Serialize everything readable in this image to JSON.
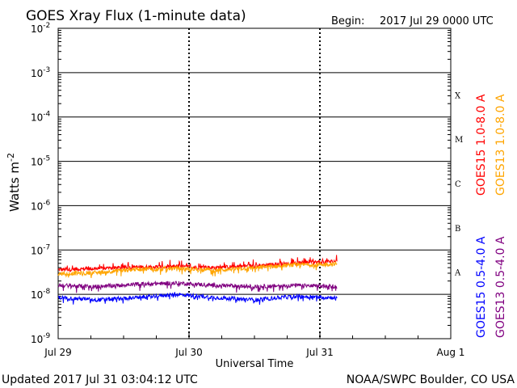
{
  "chart_data": {
    "type": "line",
    "title": "GOES Xray Flux (1-minute data)",
    "begin_label": "Begin:",
    "begin_value": "2017 Jul 29 0000 UTC",
    "xlabel": "Universal Time",
    "ylabel_main": "Watts m",
    "ylabel_exp": "-2",
    "x_ticks": [
      "Jul 29",
      "Jul 30",
      "Jul 31",
      "Aug 1"
    ],
    "xlim_days": [
      0,
      3
    ],
    "ylim_exponent": [
      -9,
      -2
    ],
    "y_ticks": [
      {
        "base": "10",
        "exp": "-2"
      },
      {
        "base": "10",
        "exp": "-3"
      },
      {
        "base": "10",
        "exp": "-4"
      },
      {
        "base": "10",
        "exp": "-5"
      },
      {
        "base": "10",
        "exp": "-6"
      },
      {
        "base": "10",
        "exp": "-7"
      },
      {
        "base": "10",
        "exp": "-8"
      },
      {
        "base": "10",
        "exp": "-9"
      }
    ],
    "flare_classes": [
      {
        "label": "X",
        "exp": -3.5
      },
      {
        "label": "M",
        "exp": -4.5
      },
      {
        "label": "C",
        "exp": -5.5
      },
      {
        "label": "B",
        "exp": -6.5
      },
      {
        "label": "A",
        "exp": -7.5
      }
    ],
    "series": [
      {
        "name": "GOES15 1.0-8.0 A",
        "color": "#ff0000",
        "x": [
          0,
          0.3,
          0.6,
          0.9,
          1.2,
          1.5,
          1.8,
          2.1,
          2.13
        ],
        "y": [
          3.6e-08,
          3.8e-08,
          4.1e-08,
          4.2e-08,
          4e-08,
          4.4e-08,
          5e-08,
          5.5e-08,
          5.7e-08
        ]
      },
      {
        "name": "GOES13 1.0-8.0 A",
        "color": "#ffa500",
        "x": [
          0,
          0.3,
          0.6,
          0.9,
          1.2,
          1.5,
          1.8,
          2.1,
          2.13
        ],
        "y": [
          2.9e-08,
          3.1e-08,
          3.7e-08,
          3.9e-08,
          3.5e-08,
          4e-08,
          4.6e-08,
          4.8e-08,
          4.9e-08
        ]
      },
      {
        "name": "GOES15 0.5-4.0 A",
        "color": "#0000ff",
        "x": [
          0,
          0.3,
          0.6,
          0.9,
          1.2,
          1.5,
          1.8,
          2.1,
          2.13
        ],
        "y": [
          8.5e-09,
          7.5e-09,
          8.5e-09,
          1e-08,
          8.5e-09,
          7.5e-09,
          9e-09,
          8.5e-09,
          8e-09
        ]
      },
      {
        "name": "GOES13 0.5-4.0 A",
        "color": "#800080",
        "x": [
          0,
          0.3,
          0.6,
          0.9,
          1.2,
          1.5,
          1.8,
          2.1,
          2.13
        ],
        "y": [
          1.6e-08,
          1.5e-08,
          1.7e-08,
          1.8e-08,
          1.6e-08,
          1.5e-08,
          1.6e-08,
          1.5e-08,
          1.5e-08
        ]
      }
    ],
    "legend": [
      "GOES15 1.0-8.0 A",
      "GOES13 1.0-8.0 A",
      "GOES15 0.5-4.0 A",
      "GOES13 0.5-4.0 A"
    ]
  },
  "footer": {
    "updated": "Updated 2017 Jul 31 03:04:12 UTC",
    "credit": "NOAA/SWPC Boulder, CO USA"
  }
}
